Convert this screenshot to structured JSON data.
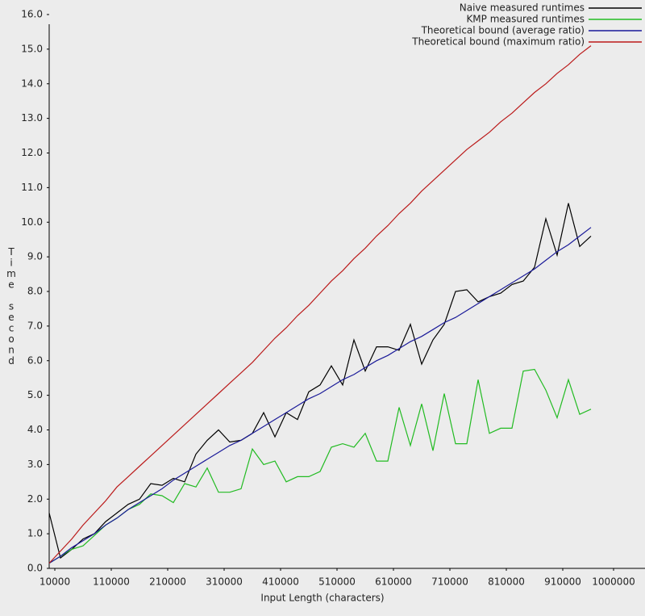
{
  "chart_data": {
    "type": "line",
    "xlabel": "Input Length (characters)",
    "ylabel": "Time second",
    "x": [
      0,
      20000,
      40000,
      60000,
      80000,
      100000,
      120000,
      140000,
      160000,
      180000,
      200000,
      220000,
      240000,
      260000,
      280000,
      300000,
      320000,
      340000,
      360000,
      380000,
      400000,
      420000,
      440000,
      460000,
      480000,
      500000,
      520000,
      540000,
      560000,
      580000,
      600000,
      620000,
      640000,
      660000,
      680000,
      700000,
      720000,
      740000,
      760000,
      780000,
      800000,
      820000,
      840000,
      860000,
      880000,
      900000,
      920000,
      940000,
      960000
    ],
    "series": [
      {
        "name": "Naive measured runtimes",
        "color": "#000000",
        "values": [
          1.6,
          0.3,
          0.55,
          0.85,
          1.0,
          1.35,
          1.6,
          1.85,
          2.0,
          2.45,
          2.4,
          2.6,
          2.5,
          3.3,
          3.7,
          4.0,
          3.65,
          3.7,
          3.9,
          4.5,
          3.8,
          4.5,
          4.3,
          5.1,
          5.3,
          5.85,
          5.3,
          6.6,
          5.7,
          6.4,
          6.4,
          6.3,
          7.05,
          5.9,
          6.6,
          7.05,
          8.0,
          8.05,
          7.7,
          7.85,
          7.95,
          8.2,
          8.3,
          8.7,
          10.1,
          9.05,
          10.55,
          9.3,
          9.6
        ]
      },
      {
        "name": "KMP measured runtimes",
        "color": "#22bb22",
        "values": [
          0.15,
          0.35,
          0.55,
          0.65,
          0.95,
          1.25,
          1.45,
          1.7,
          1.85,
          2.15,
          2.1,
          1.9,
          2.45,
          2.35,
          2.9,
          2.2,
          2.2,
          2.3,
          3.45,
          3.0,
          3.1,
          2.5,
          2.65,
          2.65,
          2.8,
          3.5,
          3.6,
          3.5,
          3.9,
          3.1,
          3.1,
          4.65,
          3.55,
          4.75,
          3.4,
          5.05,
          3.6,
          3.6,
          5.45,
          3.9,
          4.05,
          4.05,
          5.7,
          5.75,
          5.15,
          4.35,
          5.45,
          4.45,
          4.6
        ]
      },
      {
        "name": "Theoretical bound (average ratio)",
        "color": "#1a1a99",
        "values": [
          0.15,
          0.35,
          0.6,
          0.8,
          1.0,
          1.25,
          1.45,
          1.7,
          1.9,
          2.1,
          2.3,
          2.55,
          2.75,
          2.95,
          3.15,
          3.35,
          3.55,
          3.7,
          3.9,
          4.1,
          4.3,
          4.5,
          4.7,
          4.9,
          5.05,
          5.25,
          5.45,
          5.6,
          5.8,
          6.0,
          6.15,
          6.35,
          6.55,
          6.7,
          6.9,
          7.1,
          7.25,
          7.45,
          7.65,
          7.85,
          8.05,
          8.25,
          8.45,
          8.65,
          8.9,
          9.15,
          9.35,
          9.6,
          9.85
        ]
      },
      {
        "name": "Theoretical bound (maximum ratio)",
        "color": "#bb1a1a",
        "values": [
          0.15,
          0.5,
          0.85,
          1.25,
          1.6,
          1.95,
          2.35,
          2.65,
          2.95,
          3.25,
          3.55,
          3.85,
          4.15,
          4.45,
          4.75,
          5.05,
          5.35,
          5.65,
          5.95,
          6.3,
          6.65,
          6.95,
          7.3,
          7.6,
          7.95,
          8.3,
          8.6,
          8.95,
          9.25,
          9.6,
          9.9,
          10.25,
          10.55,
          10.9,
          11.2,
          11.5,
          11.8,
          12.1,
          12.35,
          12.6,
          12.9,
          13.15,
          13.45,
          13.75,
          14.0,
          14.3,
          14.55,
          14.85,
          15.1
        ]
      }
    ],
    "xlim": [
      0,
      1000000
    ],
    "xticks": [
      10000,
      110000,
      210000,
      310000,
      410000,
      510000,
      610000,
      710000,
      810000,
      910000,
      1000000
    ],
    "ylim": [
      0,
      16
    ],
    "yticks": [
      {
        "value": 0,
        "label": "0.0"
      },
      {
        "value": 1,
        "label": "1.0"
      },
      {
        "value": 2,
        "label": "2.0"
      },
      {
        "value": 3,
        "label": "3.0"
      },
      {
        "value": 4,
        "label": "4.0"
      },
      {
        "value": 5,
        "label": "5.0"
      },
      {
        "value": 6,
        "label": "6.0"
      },
      {
        "value": 7,
        "label": "7.0"
      },
      {
        "value": 8,
        "label": "8.0"
      },
      {
        "value": 9,
        "label": "9.0"
      },
      {
        "value": 10,
        "label": "10.0"
      },
      {
        "value": 11,
        "label": "11.0"
      },
      {
        "value": 12,
        "label": "12.0"
      },
      {
        "value": 13,
        "label": "13.0"
      },
      {
        "value": 14,
        "label": "14.0"
      },
      {
        "value": 15,
        "label": "15.0"
      },
      {
        "value": 16,
        "label": "16.0"
      }
    ],
    "grid": false,
    "legend": "top-right"
  }
}
